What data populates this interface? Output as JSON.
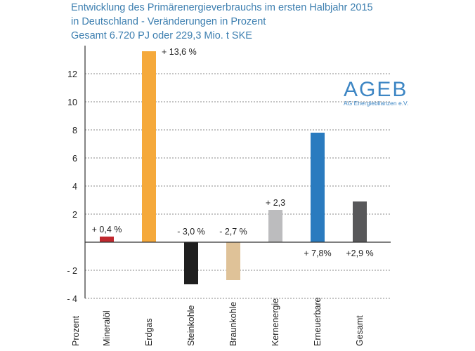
{
  "title_lines": [
    "Entwicklung des Primärenergieverbrauchs im ersten Halbjahr 2015",
    "in Deutschland - Veränderungen in Prozent",
    "Gesamt 6.720 PJ oder 229,3 Mio. t SKE"
  ],
  "logo": {
    "main": "AGEB",
    "sub": "AG Energiebilanzen e.V."
  },
  "chart_data": {
    "type": "bar",
    "title": "Entwicklung des Primärenergieverbrauchs im ersten Halbjahr 2015 in Deutschland - Veränderungen in Prozent",
    "subtitle": "Gesamt 6.720 PJ oder 229,3 Mio. t SKE",
    "xlabel": "Prozent",
    "ylabel": "",
    "ylim": [
      -4,
      14
    ],
    "yticks": [
      12,
      10,
      8,
      6,
      4,
      2,
      0,
      -2,
      -4
    ],
    "ytick_labels": [
      "12",
      "10",
      "8",
      "6",
      "4",
      "2",
      "",
      "- 2",
      "- 4"
    ],
    "grid": "horizontal dashed",
    "categories": [
      "Mineralöl",
      "Erdgas",
      "Steinkohle",
      "Braunkohle",
      "Kernenergie",
      "Erneuerbare",
      "Gesamt"
    ],
    "values": [
      0.4,
      13.6,
      -3.0,
      -2.7,
      2.3,
      7.8,
      2.9
    ],
    "data_labels": [
      "+ 0,4 %",
      "+ 13,6 %",
      "- 3,0 %",
      "- 2,7 %",
      "+ 2,3",
      "+ 7,8%",
      "+2,9 %"
    ],
    "colors": [
      "#c0282e",
      "#f5a93b",
      "#1f1f1f",
      "#dfc298",
      "#bcbcbe",
      "#2a7bbf",
      "#58585a"
    ]
  }
}
